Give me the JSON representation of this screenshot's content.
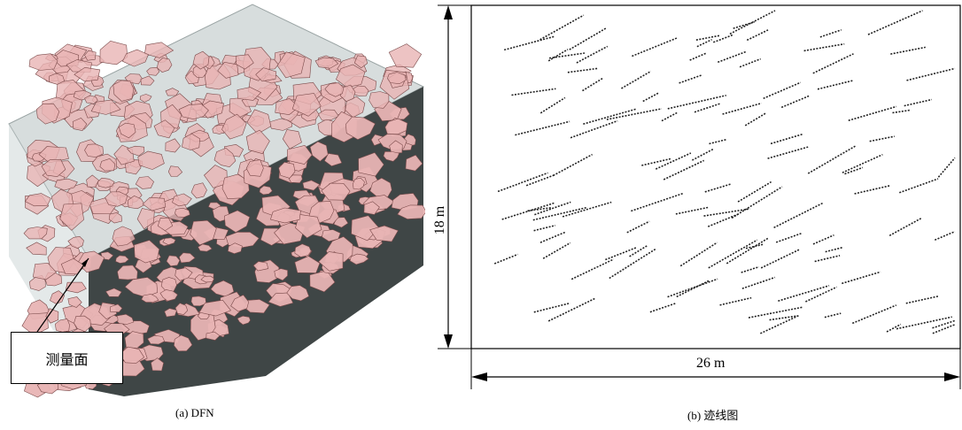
{
  "panel_a": {
    "caption": "(a) DFN",
    "callout_label": "测量面"
  },
  "panel_b": {
    "caption": "(b)  迹线图",
    "height_label": "18 m",
    "width_label": "26 m"
  },
  "colors": {
    "fracture_fill": "#e8b4b4",
    "fracture_stroke": "#7a4a4a",
    "box_top": "#c9d2d2",
    "box_face": "#3f4646",
    "trace": "#222222"
  }
}
